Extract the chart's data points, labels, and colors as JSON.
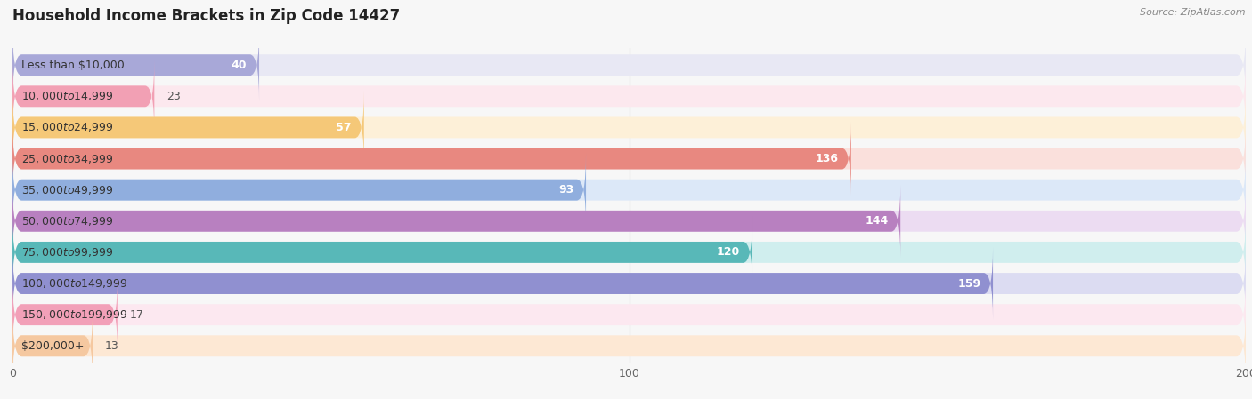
{
  "title": "Household Income Brackets in Zip Code 14427",
  "source": "Source: ZipAtlas.com",
  "categories": [
    "Less than $10,000",
    "$10,000 to $14,999",
    "$15,000 to $24,999",
    "$25,000 to $34,999",
    "$35,000 to $49,999",
    "$50,000 to $74,999",
    "$75,000 to $99,999",
    "$100,000 to $149,999",
    "$150,000 to $199,999",
    "$200,000+"
  ],
  "values": [
    40,
    23,
    57,
    136,
    93,
    144,
    120,
    159,
    17,
    13
  ],
  "bar_colors": [
    "#a8a8d8",
    "#f2a0b4",
    "#f5c878",
    "#e88880",
    "#90aede",
    "#b880c0",
    "#58b8b8",
    "#9090d0",
    "#f2a0b8",
    "#f5c8a0"
  ],
  "bar_bg_colors": [
    "#e8e8f4",
    "#fce8ee",
    "#fdf0d8",
    "#fae0dc",
    "#dce8f8",
    "#ecdcf2",
    "#d0eeee",
    "#dcdcf2",
    "#fce8f0",
    "#fde8d4"
  ],
  "xlim_min": 0,
  "xlim_max": 200,
  "xticks": [
    0,
    100,
    200
  ],
  "title_fontsize": 12,
  "label_fontsize": 9,
  "value_fontsize": 9,
  "source_fontsize": 8,
  "background_color": "#f7f7f7",
  "title_color": "#222222",
  "label_color": "#333333",
  "value_color_inside": "#ffffff",
  "value_color_outside": "#555555",
  "source_color": "#888888",
  "grid_color": "#dddddd",
  "inside_threshold": 35
}
